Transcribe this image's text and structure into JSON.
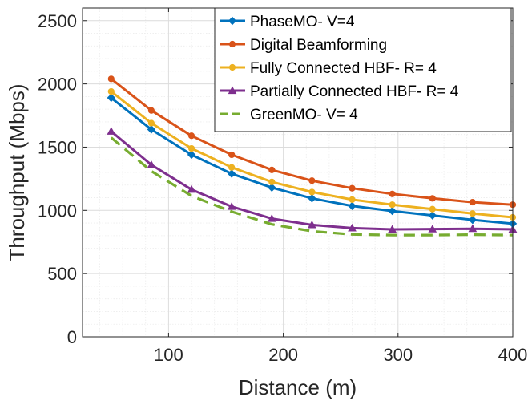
{
  "chart_data": {
    "type": "line",
    "title": "",
    "xlabel": "Distance (m)",
    "ylabel": "Throughput (Mbps)",
    "xlim": [
      25,
      400
    ],
    "ylim": [
      0,
      2600
    ],
    "xticks": [
      100,
      200,
      300,
      400
    ],
    "yticks": [
      0,
      500,
      1000,
      1500,
      2000,
      2500
    ],
    "xtick_labels": [
      "100",
      "200",
      "300",
      "400"
    ],
    "ytick_labels": [
      "0",
      "500",
      "1000",
      "1500",
      "2000",
      "2500"
    ],
    "grid": true,
    "legend_position": "top-right",
    "x": [
      50,
      85,
      120,
      155,
      190,
      225,
      260,
      295,
      330,
      365,
      400
    ],
    "series": [
      {
        "name": "PhaseMO- V=4",
        "color": "#0072BD",
        "style": "solid",
        "marker": "diamond",
        "values": [
          1890,
          1640,
          1440,
          1290,
          1180,
          1095,
          1035,
          995,
          960,
          925,
          895
        ]
      },
      {
        "name": "Digital Beamforming",
        "color": "#D95319",
        "style": "solid",
        "marker": "circle",
        "values": [
          2040,
          1790,
          1590,
          1440,
          1320,
          1235,
          1175,
          1130,
          1095,
          1065,
          1045
        ]
      },
      {
        "name": "Fully Connected HBF- R= 4",
        "color": "#EDB120",
        "style": "solid",
        "marker": "circle",
        "values": [
          1940,
          1690,
          1490,
          1340,
          1225,
          1145,
          1085,
          1045,
          1010,
          975,
          945
        ]
      },
      {
        "name": "Partially Connected HBF- R= 4",
        "color": "#7E2F8E",
        "style": "solid",
        "marker": "triangle",
        "values": [
          1625,
          1360,
          1165,
          1030,
          935,
          885,
          860,
          850,
          852,
          855,
          850
        ]
      },
      {
        "name": "GreenMO- V= 4",
        "color": "#77AC30",
        "style": "dashed",
        "marker": "none",
        "values": [
          1575,
          1310,
          1115,
          990,
          890,
          835,
          810,
          805,
          805,
          808,
          805
        ]
      }
    ]
  }
}
